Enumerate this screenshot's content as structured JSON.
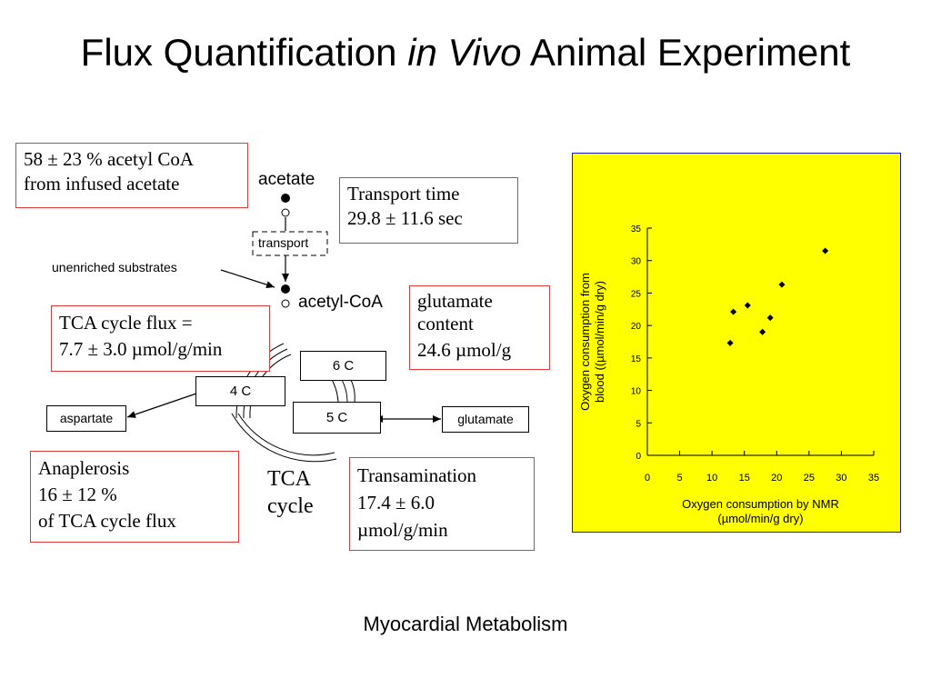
{
  "title": {
    "main": "Flux Quantification ",
    "italic": "in Vivo",
    "rest": " Animal Experiment"
  },
  "info_boxes": {
    "acetyl_coa": [
      "58 ± 23 % acetyl CoA",
      "from infused acetate"
    ],
    "transport_time": [
      "Transport time",
      "29.8 ± 11.6 sec"
    ],
    "glutamate_content": [
      "glutamate",
      "content",
      "24.6 µmol/g"
    ],
    "tca_flux": [
      "TCA cycle flux =",
      "7.7 ± 3.0 µmol/g/min"
    ],
    "anaplerosis": [
      "Anaplerosis",
      "16 ± 12 %",
      "of TCA cycle flux"
    ],
    "transamination": [
      "Transamination",
      "17.4 ± 6.0",
      "µmol/g/min"
    ]
  },
  "diagram": {
    "acetate": "acetate",
    "transport": "transport",
    "unenriched": "unenriched substrates",
    "acetyl_coa": "acetyl-CoA",
    "six_c": "6 C",
    "four_c": "4 C",
    "five_c": "5 C",
    "aspartate": "aspartate",
    "glutamate": "glutamate",
    "tca_label": [
      "TCA",
      "cycle"
    ]
  },
  "colors": {
    "panel_bg": "#ffff00",
    "panel_border": "#1a1ab0",
    "box_border": "#e23a3a"
  },
  "chart_data": {
    "type": "scatter",
    "xlabel": [
      "Oxygen consumption by NMR",
      "(µmol/min/g dry)"
    ],
    "ylabel": [
      "Oxygen consumption from",
      "blood ((µmol/min/g dry)"
    ],
    "xlim": [
      0,
      35
    ],
    "ylim": [
      0,
      35
    ],
    "x_ticks": [
      0,
      5,
      10,
      15,
      20,
      25,
      30,
      35
    ],
    "y_ticks": [
      0,
      5,
      10,
      15,
      20,
      25,
      30,
      35
    ],
    "grid": false,
    "points": [
      {
        "x": 12.8,
        "y": 17.3
      },
      {
        "x": 13.3,
        "y": 22.1
      },
      {
        "x": 15.5,
        "y": 23.1
      },
      {
        "x": 17.8,
        "y": 19.0
      },
      {
        "x": 19.0,
        "y": 21.2
      },
      {
        "x": 20.8,
        "y": 26.3
      },
      {
        "x": 27.5,
        "y": 31.5
      }
    ]
  },
  "caption": "Myocardial Metabolism"
}
